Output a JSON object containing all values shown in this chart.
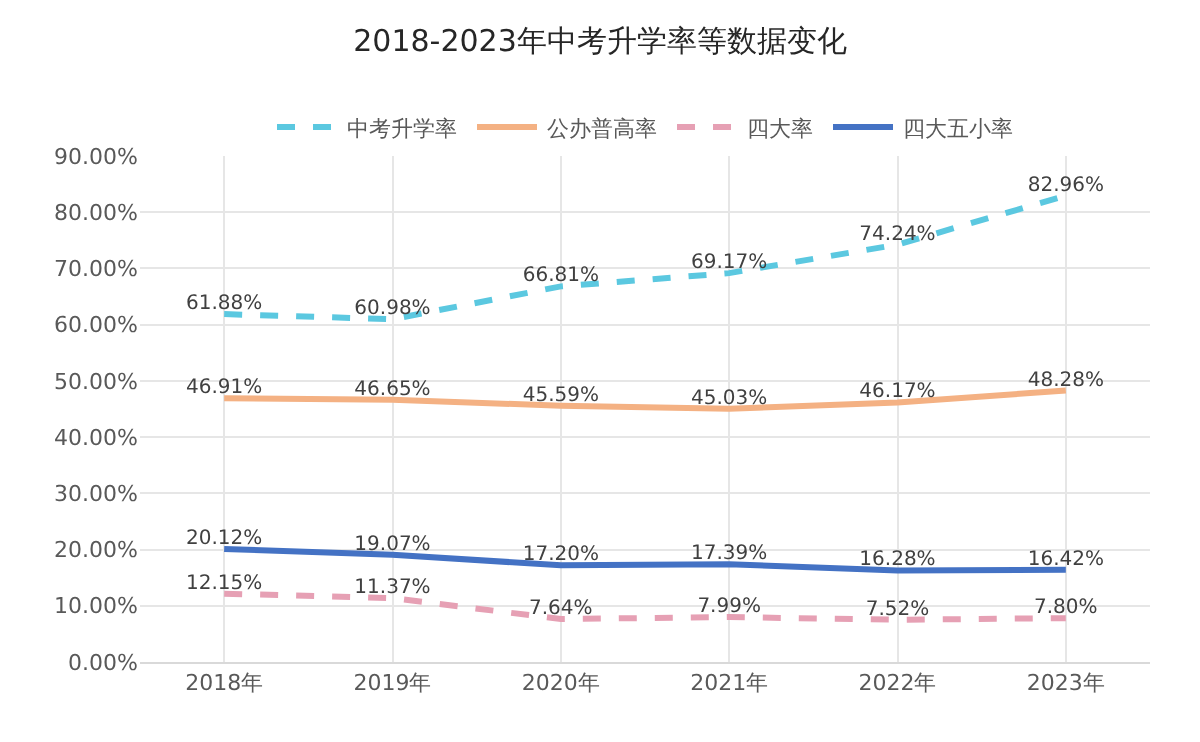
{
  "chart_data": {
    "type": "line",
    "title": "2018-2023年中考升学率等数据变化",
    "categories": [
      "2018年",
      "2019年",
      "2020年",
      "2021年",
      "2022年",
      "2023年"
    ],
    "series": [
      {
        "name": "中考升学率",
        "color": "#5bc8e0",
        "line_style": "dashed",
        "values": [
          61.88,
          60.98,
          66.81,
          69.17,
          74.24,
          82.96
        ],
        "value_labels": [
          "61.88%",
          "60.98%",
          "66.81%",
          "69.17%",
          "74.24%",
          "82.96%"
        ]
      },
      {
        "name": "公办普高率",
        "color": "#f4b183",
        "line_style": "solid",
        "values": [
          46.91,
          46.65,
          45.59,
          45.03,
          46.17,
          48.28
        ],
        "value_labels": [
          "46.91%",
          "46.65%",
          "45.59%",
          "45.03%",
          "46.17%",
          "48.28%"
        ]
      },
      {
        "name": "四大率",
        "color": "#e6a0b4",
        "line_style": "dashed",
        "values": [
          12.15,
          11.37,
          7.64,
          7.99,
          7.52,
          7.8
        ],
        "value_labels": [
          "12.15%",
          "11.37%",
          "7.64%",
          "7.99%",
          "7.52%",
          "7.80%"
        ]
      },
      {
        "name": "四大五小率",
        "color": "#4472c4",
        "line_style": "solid",
        "values": [
          20.12,
          19.07,
          17.2,
          17.39,
          16.28,
          16.42
        ],
        "value_labels": [
          "20.12%",
          "19.07%",
          "17.20%",
          "17.39%",
          "16.28%",
          "16.42%"
        ]
      }
    ],
    "ylim": [
      0,
      90
    ],
    "yticks": [
      {
        "value": 0,
        "label": "0.00%"
      },
      {
        "value": 10,
        "label": "10.00%"
      },
      {
        "value": 20,
        "label": "20.00%"
      },
      {
        "value": 30,
        "label": "30.00%"
      },
      {
        "value": 40,
        "label": "40.00%"
      },
      {
        "value": 50,
        "label": "50.00%"
      },
      {
        "value": 60,
        "label": "60.00%"
      },
      {
        "value": 70,
        "label": "70.00%"
      },
      {
        "value": 80,
        "label": "80.00%"
      },
      {
        "value": 90,
        "label": "90.00%"
      }
    ],
    "grid": true,
    "legend": "top",
    "marker": "none"
  }
}
